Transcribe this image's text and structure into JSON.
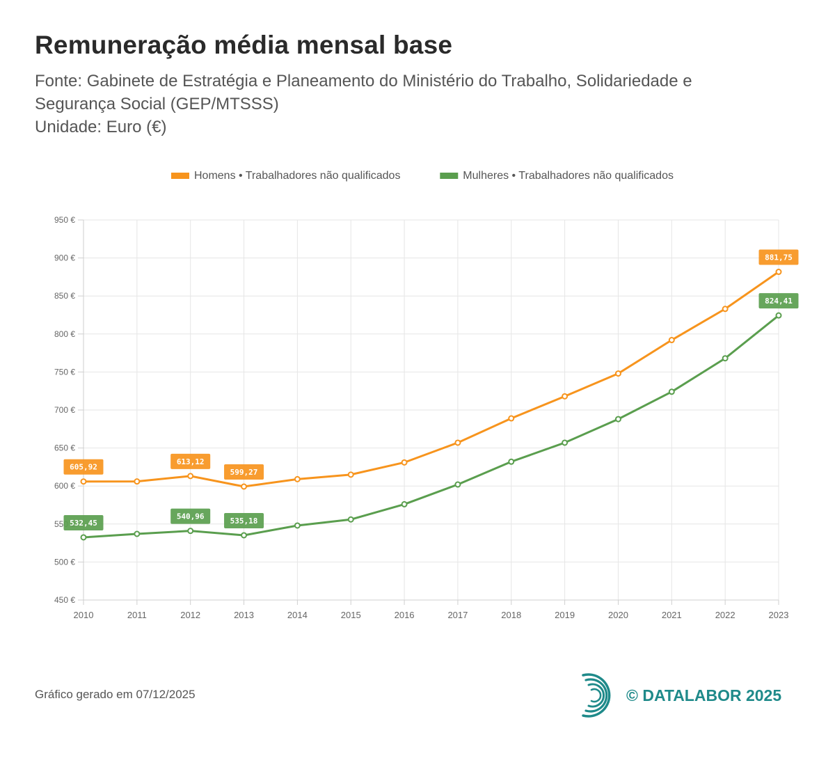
{
  "header": {
    "title": "Remuneração média mensal base",
    "source_line1": "Fonte: Gabinete de Estratégia e Planeamento do Ministério do Trabalho, Solidariedade e",
    "source_line2": "Segurança Social (GEP/MTSSS)",
    "unit": "Unidade: Euro (€)"
  },
  "chart_data": {
    "type": "line",
    "title": "Remuneração média mensal base",
    "categories": [
      "2010",
      "2011",
      "2012",
      "2013",
      "2014",
      "2015",
      "2016",
      "2017",
      "2018",
      "2019",
      "2020",
      "2021",
      "2022",
      "2023"
    ],
    "ylim": [
      450,
      950
    ],
    "ytick_step": 50,
    "ytick_suffix": " €",
    "xlabel": "",
    "ylabel": "",
    "grid": true,
    "legend_position": "top-center",
    "series": [
      {
        "name": "Homens • Trabalhadores não qualificados",
        "color": "#f7941d",
        "values": [
          605.92,
          606,
          613.12,
          599.27,
          609,
          615,
          631,
          657,
          689,
          718,
          748,
          792,
          833,
          881.75
        ],
        "data_labels": [
          {
            "index": 0,
            "text": "605,92"
          },
          {
            "index": 2,
            "text": "613,12"
          },
          {
            "index": 3,
            "text": "599,27"
          },
          {
            "index": 13,
            "text": "881,75"
          }
        ]
      },
      {
        "name": "Mulheres • Trabalhadores não qualificados",
        "color": "#5a9e4e",
        "values": [
          532.45,
          537,
          540.96,
          535.18,
          548,
          556,
          576,
          602,
          632,
          657,
          688,
          724,
          768,
          824.41
        ],
        "data_labels": [
          {
            "index": 0,
            "text": "532,45"
          },
          {
            "index": 2,
            "text": "540,96"
          },
          {
            "index": 3,
            "text": "535,18"
          },
          {
            "index": 13,
            "text": "824,41"
          }
        ]
      }
    ]
  },
  "footer": {
    "generated": "Gráfico gerado em 07/12/2025",
    "brand": "© DATALABOR 2025"
  },
  "colors": {
    "homens": "#f7941d",
    "mulheres": "#5a9e4e",
    "brand": "#1f8a8a"
  }
}
